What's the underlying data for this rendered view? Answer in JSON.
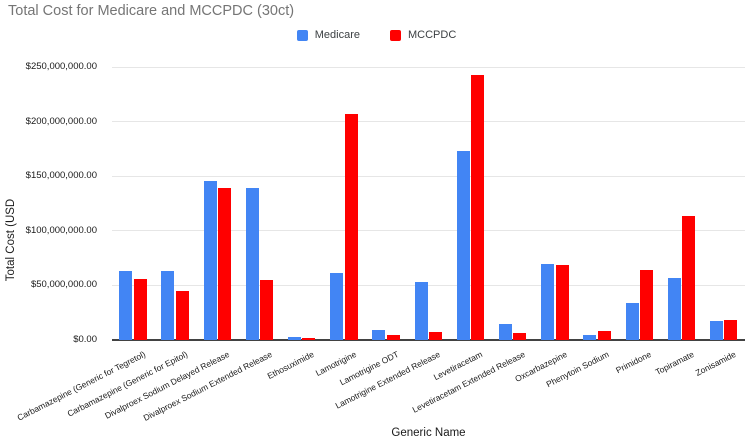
{
  "chart_data": {
    "type": "bar",
    "title": "Total Cost for Medicare and MCCPDC (30ct)",
    "xlabel": "Generic Name",
    "ylabel": "Total Cost (USD",
    "ylim": [
      0,
      250000000
    ],
    "ytick_interval": 50000000,
    "ytick_labels": [
      "$0.00",
      "$50,000,000.00",
      "$100,000,000.00",
      "$150,000,000.00",
      "$200,000,000.00",
      "$250,000,000.00"
    ],
    "grid": true,
    "legend_position": "top-center",
    "categories": [
      "Carbamazepine (Generic for Tegretol)",
      "Carbamazepine (Generic for Epitol)",
      "Divalproex Sodium Delayed Release",
      "Divalproex Sodium Extended Release",
      "Ethosuximide",
      "Lamotrigine",
      "Lamotrigine ODT",
      "Lamotrigine Extended Release",
      "Levetiracetam",
      "Levetiracetam Extended Release",
      "Oxcarbazepine",
      "Phenytoin Sodium",
      "Primidone",
      "Topiramate",
      "Zonisamide"
    ],
    "series": [
      {
        "name": "Medicare",
        "color": "#4285f4",
        "values": [
          63000000,
          63000000,
          146000000,
          139000000,
          3000000,
          61000000,
          9000000,
          53000000,
          173000000,
          15000000,
          70000000,
          4500000,
          34000000,
          57000000,
          17000000
        ]
      },
      {
        "name": "MCCPDC",
        "color": "#ff0000",
        "values": [
          56000000,
          45000000,
          139000000,
          55000000,
          2000000,
          207000000,
          4500000,
          7500000,
          243000000,
          6000000,
          69000000,
          8500000,
          64000000,
          114000000,
          18000000
        ]
      }
    ]
  }
}
